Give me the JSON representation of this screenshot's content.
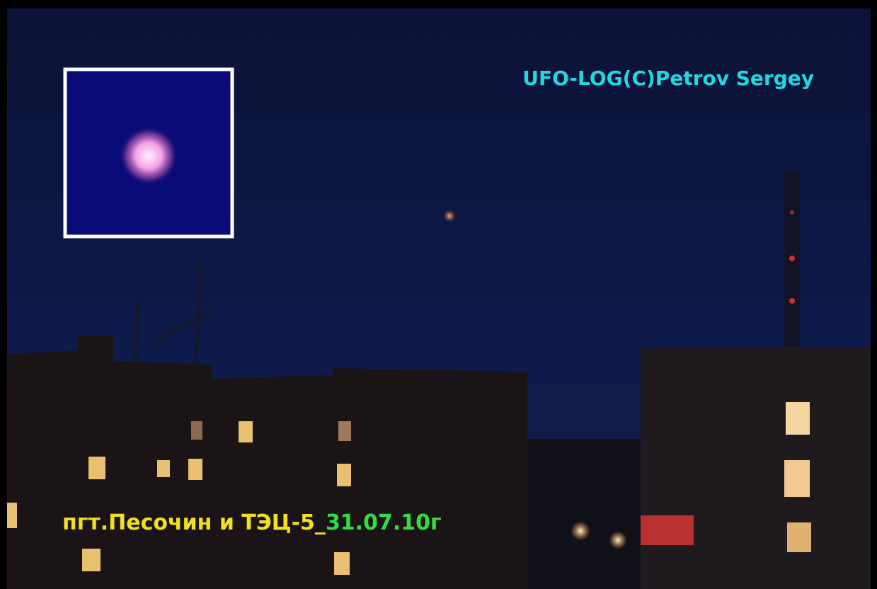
{
  "watermark": "UFO-LOG(C)Petrov Sergey",
  "caption": {
    "place": "пгт.Песочин и ТЭЦ-5_",
    "date": "31.07.10г"
  }
}
